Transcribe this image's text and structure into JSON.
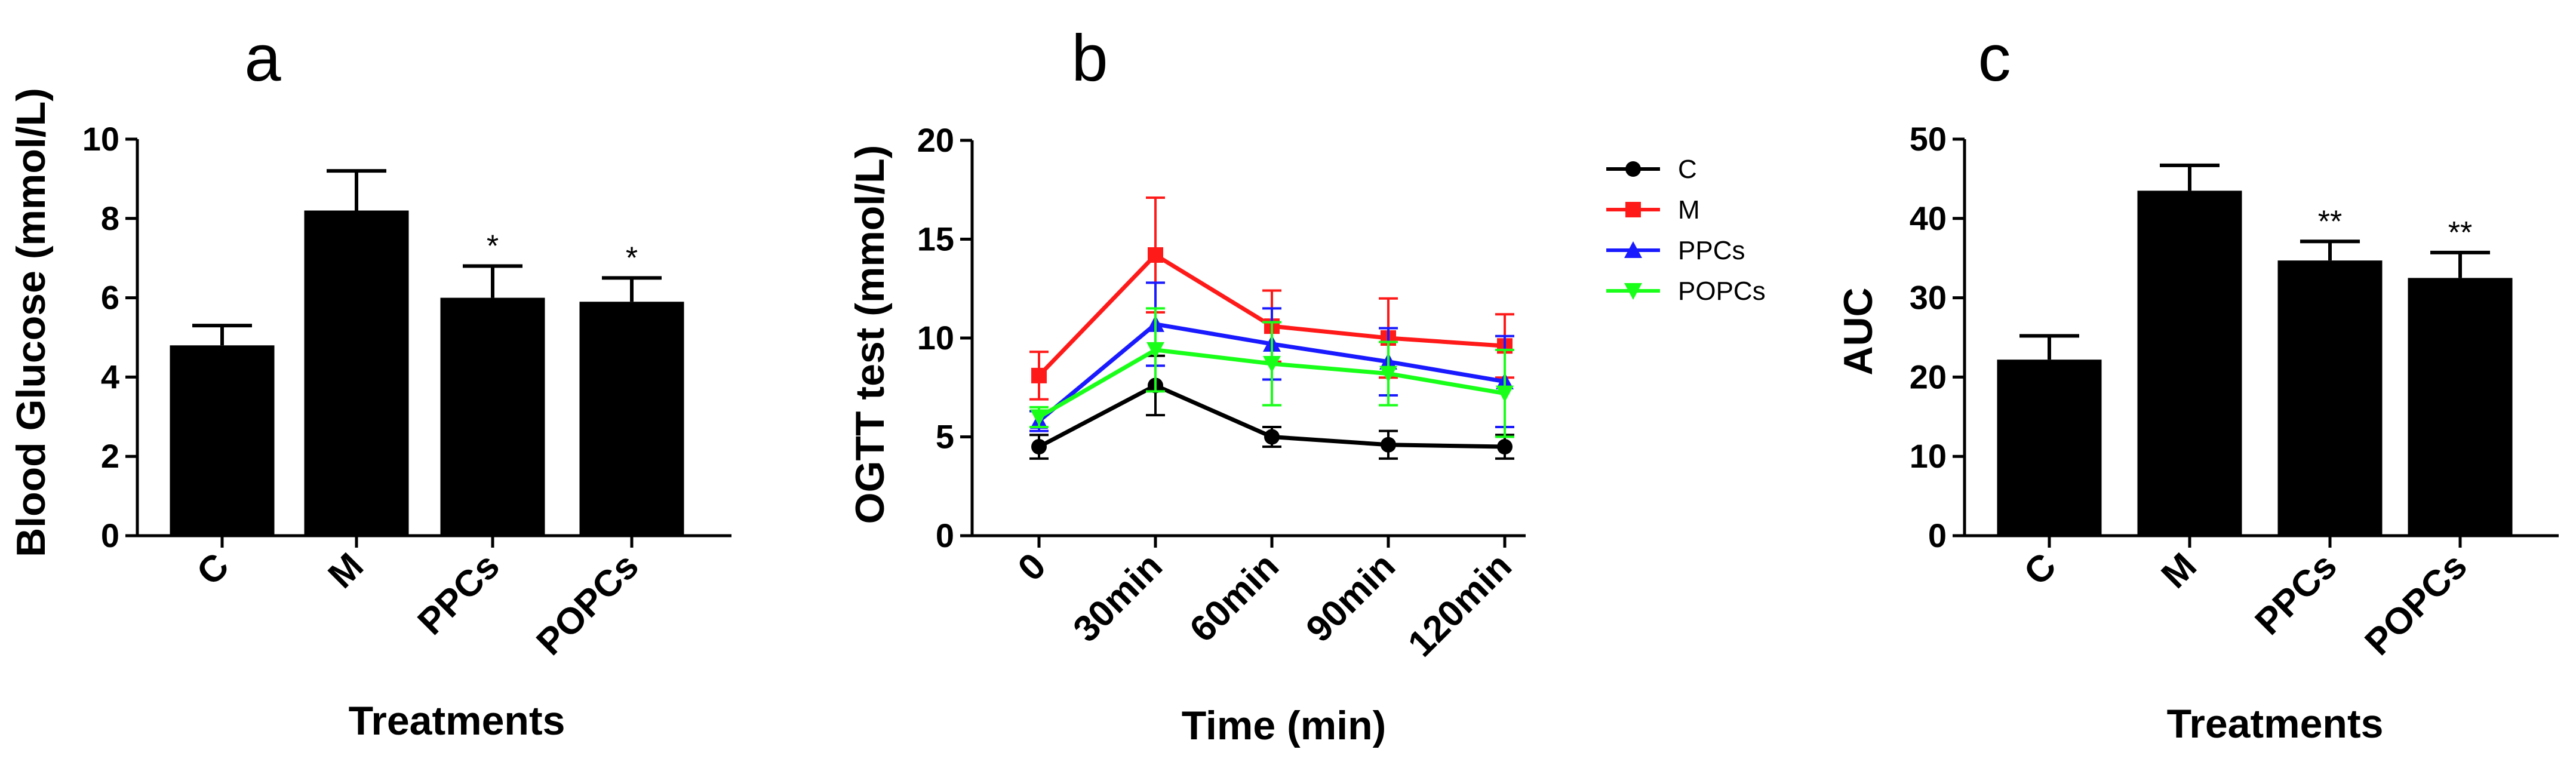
{
  "colors": {
    "bar": "#000000",
    "axis": "#000000",
    "C": "#000000",
    "M": "#ff1a1a",
    "PPCs": "#1a1aff",
    "POPCs": "#1aff1a"
  },
  "chart_data": [
    {
      "panel": "a",
      "type": "bar",
      "title": "",
      "xlabel": "Treatments",
      "ylabel": "Blood Glucose (mmol/L)",
      "ylim": [
        0,
        10
      ],
      "yticks": [
        0,
        2,
        4,
        6,
        8,
        10
      ],
      "categories": [
        "C",
        "M",
        "PPCs",
        "POPCs"
      ],
      "values": [
        4.8,
        8.2,
        6.0,
        5.9
      ],
      "errors": [
        0.5,
        1.0,
        0.8,
        0.6
      ],
      "significance": [
        "",
        "",
        "*",
        "*"
      ]
    },
    {
      "panel": "b",
      "type": "line",
      "title": "",
      "xlabel": "Time (min)",
      "ylabel": "OGTT test (mmol/L)",
      "ylim": [
        0,
        20
      ],
      "yticks": [
        0,
        5,
        10,
        15,
        20
      ],
      "x": [
        "0",
        "30min",
        "60min",
        "90min",
        "120min"
      ],
      "legend_position": "right",
      "series": [
        {
          "name": "C",
          "marker": "circle",
          "values": [
            4.5,
            7.6,
            5.0,
            4.6,
            4.5
          ],
          "errors": [
            0.6,
            1.5,
            0.5,
            0.7,
            0.6
          ]
        },
        {
          "name": "M",
          "marker": "square",
          "values": [
            8.1,
            14.2,
            10.6,
            10.0,
            9.6
          ],
          "errors": [
            1.2,
            2.9,
            1.8,
            2.0,
            1.6
          ]
        },
        {
          "name": "PPCs",
          "marker": "triangle-up",
          "values": [
            5.8,
            10.7,
            9.7,
            8.8,
            7.8
          ],
          "errors": [
            0.5,
            2.1,
            1.8,
            1.7,
            2.3
          ]
        },
        {
          "name": "POPCs",
          "marker": "triangle-down",
          "values": [
            6.0,
            9.4,
            8.7,
            8.2,
            7.2
          ],
          "errors": [
            0.5,
            2.1,
            2.1,
            1.6,
            2.2
          ]
        }
      ]
    },
    {
      "panel": "c",
      "type": "bar",
      "title": "",
      "xlabel": "Treatments",
      "ylabel": "AUC",
      "ylim": [
        0,
        50
      ],
      "yticks": [
        0,
        10,
        20,
        30,
        40,
        50
      ],
      "categories": [
        "C",
        "M",
        "PPCs",
        "POPCs"
      ],
      "values": [
        22.2,
        43.5,
        34.7,
        32.5
      ],
      "errors": [
        3.0,
        3.2,
        2.4,
        3.2
      ],
      "significance": [
        "",
        "",
        "**",
        "**"
      ]
    }
  ]
}
